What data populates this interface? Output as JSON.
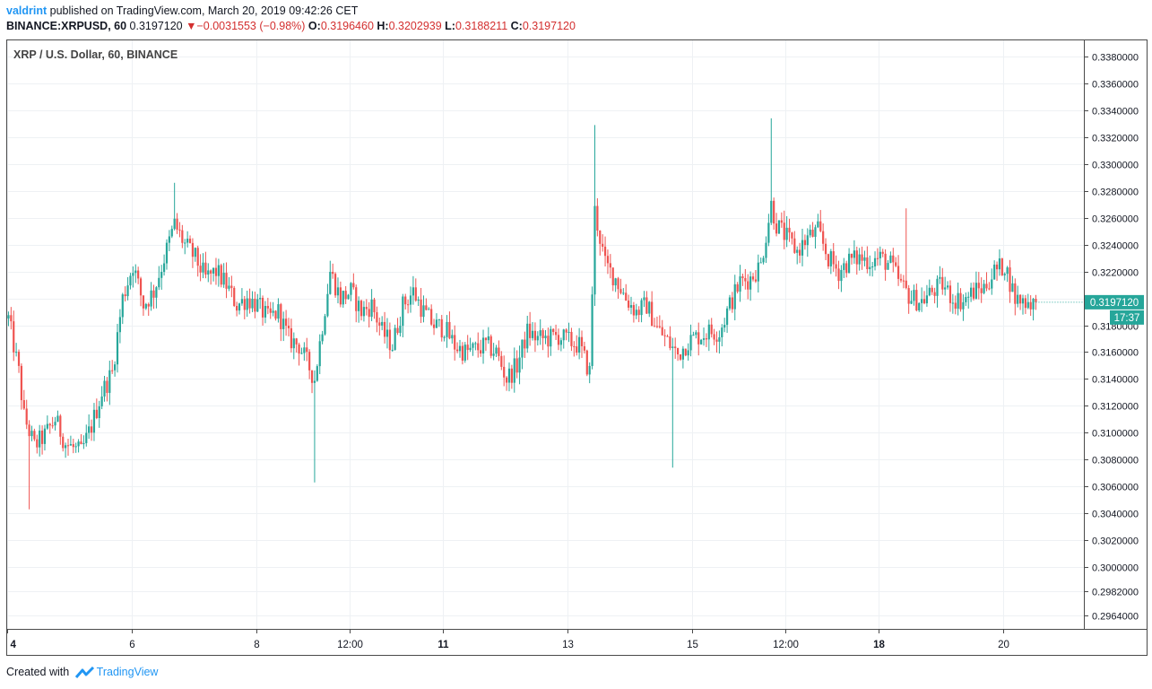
{
  "header": {
    "user": "valdrint",
    "published_text": " published on TradingView.com, March 20, 2019 09:42:26 CET",
    "symbol_line": "BINANCE:XRPUSD, 60",
    "last": "0.3197120",
    "change": "−0.0031553 (−0.98%)",
    "o_label": "O:",
    "o_value": "0.3196460",
    "h_label": "H:",
    "h_value": "0.3202939",
    "l_label": "L:",
    "l_value": "0.3188211",
    "c_label": "C:",
    "c_value": "0.3197120"
  },
  "footer": {
    "created_with": "Created with",
    "brand": "TradingView"
  },
  "colors": {
    "up": "#26a69a",
    "down": "#ef5350",
    "price_tag": "#26a69a",
    "grid": "#eef1f4",
    "text": "#131722"
  },
  "chart_data": {
    "type": "candlestick",
    "title": "XRP / U.S. Dollar, 60, BINANCE",
    "symbol": "XRPUSD",
    "interval": "60",
    "ylim": [
      0.2954,
      0.3392
    ],
    "y_ticks": [
      0.338,
      0.336,
      0.334,
      0.332,
      0.33,
      0.328,
      0.326,
      0.324,
      0.322,
      0.32,
      0.318,
      0.316,
      0.314,
      0.312,
      0.31,
      0.308,
      0.306,
      0.304,
      0.302,
      0.3,
      0.2982,
      0.2964
    ],
    "y_tick_labels": [
      "0.3380000",
      "0.3360000",
      "0.3340000",
      "0.3320000",
      "0.3300000",
      "0.3280000",
      "0.3260000",
      "0.3240000",
      "0.3220000",
      "0.3200000",
      "0.3180000",
      "0.3160000",
      "0.3140000",
      "0.3120000",
      "0.3100000",
      "0.3080000",
      "0.3060000",
      "0.3040000",
      "0.3020000",
      "0.3000000",
      "0.2982000",
      "0.2964000"
    ],
    "x_labels": [
      {
        "label": "4",
        "bold": true,
        "hour": 0
      },
      {
        "label": "6",
        "bold": false,
        "hour": 48
      },
      {
        "label": "8",
        "bold": false,
        "hour": 96
      },
      {
        "label": "12:00",
        "bold": false,
        "hour": 132
      },
      {
        "label": "11",
        "bold": true,
        "hour": 168
      },
      {
        "label": "13",
        "bold": false,
        "hour": 216
      },
      {
        "label": "15",
        "bold": false,
        "hour": 264
      },
      {
        "label": "12:00",
        "bold": false,
        "hour": 300
      },
      {
        "label": "18",
        "bold": true,
        "hour": 336
      },
      {
        "label": "20",
        "bold": false,
        "hour": 384
      }
    ],
    "x_hours_range": [
      0,
      415
    ],
    "last_price": 0.319712,
    "last_price_label": "0.3197120",
    "countdown": "17:37",
    "price_path": [
      [
        0,
        0.3185
      ],
      [
        4,
        0.3145
      ],
      [
        6,
        0.3112
      ],
      [
        10,
        0.309
      ],
      [
        14,
        0.3098
      ],
      [
        18,
        0.311
      ],
      [
        22,
        0.3092
      ],
      [
        28,
        0.3085
      ],
      [
        32,
        0.3105
      ],
      [
        36,
        0.313
      ],
      [
        40,
        0.3145
      ],
      [
        44,
        0.32
      ],
      [
        48,
        0.3225
      ],
      [
        52,
        0.3195
      ],
      [
        56,
        0.3205
      ],
      [
        60,
        0.323
      ],
      [
        64,
        0.3255
      ],
      [
        68,
        0.324
      ],
      [
        72,
        0.323
      ],
      [
        76,
        0.3215
      ],
      [
        80,
        0.322
      ],
      [
        84,
        0.321
      ],
      [
        88,
        0.3195
      ],
      [
        92,
        0.32
      ],
      [
        96,
        0.3195
      ],
      [
        100,
        0.3185
      ],
      [
        104,
        0.319
      ],
      [
        108,
        0.317
      ],
      [
        112,
        0.3165
      ],
      [
        118,
        0.314
      ],
      [
        124,
        0.322
      ],
      [
        128,
        0.32
      ],
      [
        132,
        0.3205
      ],
      [
        136,
        0.319
      ],
      [
        140,
        0.3195
      ],
      [
        144,
        0.3175
      ],
      [
        148,
        0.3165
      ],
      [
        152,
        0.3195
      ],
      [
        156,
        0.3205
      ],
      [
        160,
        0.319
      ],
      [
        164,
        0.318
      ],
      [
        168,
        0.3178
      ],
      [
        172,
        0.3165
      ],
      [
        176,
        0.316
      ],
      [
        180,
        0.3162
      ],
      [
        184,
        0.3165
      ],
      [
        188,
        0.316
      ],
      [
        192,
        0.314
      ],
      [
        196,
        0.315
      ],
      [
        200,
        0.3175
      ],
      [
        204,
        0.317
      ],
      [
        208,
        0.317
      ],
      [
        212,
        0.3172
      ],
      [
        216,
        0.3168
      ],
      [
        220,
        0.3165
      ],
      [
        224,
        0.3145
      ],
      [
        226,
        0.3265
      ],
      [
        230,
        0.3225
      ],
      [
        234,
        0.3215
      ],
      [
        238,
        0.32
      ],
      [
        242,
        0.319
      ],
      [
        246,
        0.3195
      ],
      [
        250,
        0.3178
      ],
      [
        254,
        0.3168
      ],
      [
        258,
        0.3158
      ],
      [
        262,
        0.3168
      ],
      [
        266,
        0.3172
      ],
      [
        270,
        0.3175
      ],
      [
        274,
        0.3175
      ],
      [
        278,
        0.3195
      ],
      [
        282,
        0.3212
      ],
      [
        286,
        0.3215
      ],
      [
        290,
        0.3225
      ],
      [
        294,
        0.327
      ],
      [
        296,
        0.3255
      ],
      [
        300,
        0.3245
      ],
      [
        304,
        0.3235
      ],
      [
        308,
        0.3245
      ],
      [
        312,
        0.325
      ],
      [
        316,
        0.323
      ],
      [
        320,
        0.322
      ],
      [
        324,
        0.3228
      ],
      [
        328,
        0.323
      ],
      [
        332,
        0.3228
      ],
      [
        336,
        0.323
      ],
      [
        340,
        0.3225
      ],
      [
        344,
        0.321
      ],
      [
        348,
        0.32
      ],
      [
        352,
        0.3198
      ],
      [
        356,
        0.3205
      ],
      [
        360,
        0.321
      ],
      [
        364,
        0.32
      ],
      [
        368,
        0.3198
      ],
      [
        372,
        0.3205
      ],
      [
        376,
        0.3208
      ],
      [
        380,
        0.322
      ],
      [
        384,
        0.3225
      ],
      [
        388,
        0.32
      ],
      [
        392,
        0.3198
      ],
      [
        396,
        0.3197
      ]
    ],
    "spikes": [
      {
        "hour": 8,
        "low": 0.3043
      },
      {
        "hour": 64,
        "high": 0.3286
      },
      {
        "hour": 118,
        "low": 0.3063
      },
      {
        "hour": 226,
        "high": 0.3329
      },
      {
        "hour": 256,
        "low": 0.3074
      },
      {
        "hour": 294,
        "high": 0.3334
      },
      {
        "hour": 346,
        "high": 0.3267
      }
    ]
  }
}
